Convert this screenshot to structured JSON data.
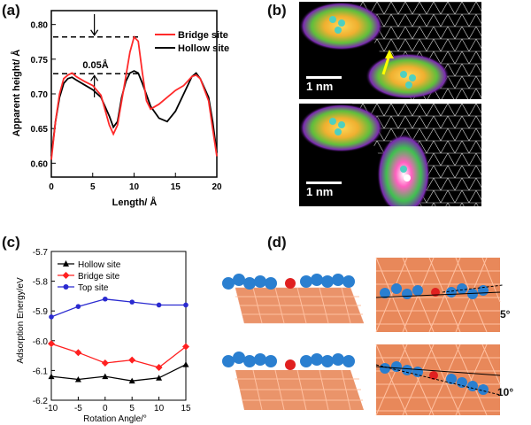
{
  "panels": {
    "a": {
      "tag": "(a)"
    },
    "b": {
      "tag": "(b)"
    },
    "c": {
      "tag": "(c)"
    },
    "d": {
      "tag": "(d)"
    }
  },
  "chart_data": [
    {
      "panel": "a",
      "type": "line",
      "xlabel": "Length/ Å",
      "ylabel": "Apparent height/ Å",
      "xlim": [
        0,
        20
      ],
      "ylim": [
        0.58,
        0.82
      ],
      "xticks": [
        0,
        5,
        10,
        15,
        20
      ],
      "yticks": [
        0.6,
        0.65,
        0.7,
        0.75,
        0.8
      ],
      "legend_position": "top-right",
      "annotation": "0.05Å",
      "reference_lines": [
        0.782,
        0.729
      ],
      "series": [
        {
          "name": "Bridge site",
          "color": "#ff2a2a",
          "points": [
            [
              0,
              0.605
            ],
            [
              0.5,
              0.66
            ],
            [
              1,
              0.7
            ],
            [
              1.5,
              0.722
            ],
            [
              2,
              0.727
            ],
            [
              2.5,
              0.73
            ],
            [
              3,
              0.725
            ],
            [
              4,
              0.718
            ],
            [
              5,
              0.712
            ],
            [
              6,
              0.698
            ],
            [
              7,
              0.655
            ],
            [
              7.5,
              0.642
            ],
            [
              8,
              0.655
            ],
            [
              8.5,
              0.69
            ],
            [
              9,
              0.725
            ],
            [
              9.5,
              0.76
            ],
            [
              10,
              0.782
            ],
            [
              10.5,
              0.776
            ],
            [
              11,
              0.73
            ],
            [
              11.5,
              0.69
            ],
            [
              12,
              0.678
            ],
            [
              13,
              0.685
            ],
            [
              14,
              0.695
            ],
            [
              15,
              0.705
            ],
            [
              16,
              0.712
            ],
            [
              17,
              0.725
            ],
            [
              17.5,
              0.727
            ],
            [
              18,
              0.722
            ],
            [
              19,
              0.69
            ],
            [
              19.5,
              0.65
            ],
            [
              20,
              0.61
            ]
          ]
        },
        {
          "name": "Hollow site",
          "color": "#000000",
          "points": [
            [
              0,
              0.61
            ],
            [
              0.5,
              0.66
            ],
            [
              1,
              0.695
            ],
            [
              1.5,
              0.715
            ],
            [
              2,
              0.722
            ],
            [
              2.5,
              0.724
            ],
            [
              3,
              0.72
            ],
            [
              4,
              0.713
            ],
            [
              5,
              0.706
            ],
            [
              6,
              0.695
            ],
            [
              7,
              0.668
            ],
            [
              7.5,
              0.652
            ],
            [
              8,
              0.66
            ],
            [
              8.5,
              0.695
            ],
            [
              9,
              0.718
            ],
            [
              9.5,
              0.73
            ],
            [
              10,
              0.733
            ],
            [
              10.5,
              0.73
            ],
            [
              11,
              0.715
            ],
            [
              12,
              0.682
            ],
            [
              13,
              0.665
            ],
            [
              14,
              0.66
            ],
            [
              15,
              0.675
            ],
            [
              16,
              0.7
            ],
            [
              17,
              0.725
            ],
            [
              17.5,
              0.73
            ],
            [
              18,
              0.722
            ],
            [
              19,
              0.695
            ],
            [
              19.5,
              0.66
            ],
            [
              20,
              0.615
            ]
          ]
        }
      ]
    },
    {
      "panel": "c",
      "type": "line",
      "xlabel": "Rotation Angle/°",
      "ylabel": "Adsorption Energy/eV",
      "xlim": [
        -10,
        15
      ],
      "ylim": [
        -6.2,
        -5.7
      ],
      "xticks": [
        -10,
        -5,
        0,
        5,
        10,
        15
      ],
      "yticks": [
        -5.7,
        -5.8,
        -5.9,
        -6.0,
        -6.1,
        -6.2
      ],
      "legend_position": "top-left",
      "categories": [
        -10,
        -5,
        0,
        5,
        10,
        15
      ],
      "series": [
        {
          "name": "Hollow site",
          "color": "#000000",
          "marker": "triangle",
          "values": [
            -6.12,
            -6.13,
            -6.12,
            -6.135,
            -6.125,
            -6.08
          ]
        },
        {
          "name": "Bridge site",
          "color": "#ff2020",
          "marker": "diamond",
          "values": [
            -6.01,
            -6.04,
            -6.075,
            -6.065,
            -6.09,
            -6.02
          ]
        },
        {
          "name": "Top site",
          "color": "#2a2ad0",
          "marker": "circle",
          "values": [
            -5.92,
            -5.885,
            -5.86,
            -5.87,
            -5.88,
            -5.88
          ]
        }
      ]
    }
  ],
  "stm_images": {
    "top_scale": "1 nm",
    "bottom_scale": "1 nm"
  },
  "models": {
    "angle_top": "5°",
    "angle_bottom": "10°"
  }
}
